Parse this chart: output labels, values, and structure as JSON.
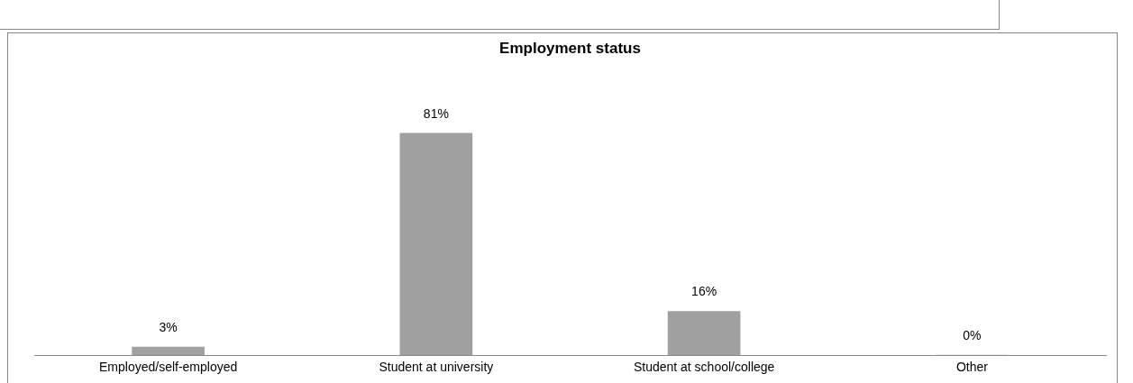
{
  "chart_data": {
    "type": "bar",
    "title": "Employment status",
    "categories": [
      "Employed/self-employed",
      "Student at university",
      "Student at school/college",
      "Other"
    ],
    "values": [
      3,
      81,
      16,
      0
    ],
    "value_labels": [
      "3%",
      "81%",
      "16%",
      "0%"
    ],
    "color": "#a0a0a0",
    "grid": false,
    "legend": false,
    "tick_labels": "x"
  }
}
